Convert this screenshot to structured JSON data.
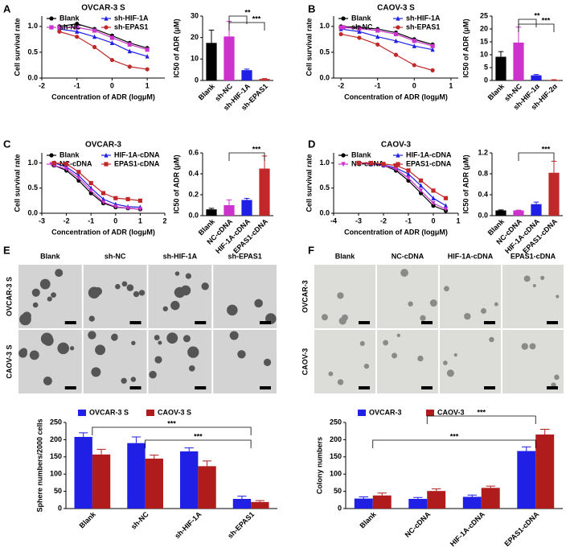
{
  "panel_labels": [
    "A",
    "B",
    "C",
    "D",
    "E",
    "F"
  ],
  "image_panels": [
    {
      "columns": [
        "Blank",
        "sh-NC",
        "sh-HIF-1A",
        "sh-EPAS1"
      ],
      "rows": [
        "OVCAR-3 S",
        "CAOV-3 S"
      ]
    },
    {
      "columns": [
        "Blank",
        "NC-cDNA",
        "HIF-1A-cDNA",
        "EPAS1-cDNA"
      ],
      "rows": [
        "OVCAR-3",
        "CAOV-3"
      ]
    }
  ],
  "chart_data": [
    {
      "type": "line",
      "title": "OVCAR-3 S",
      "x_label": "Concentration of ADR (logμM)",
      "y_label": "Cell survival rate",
      "x": [
        -1.5,
        -1,
        -0.5,
        0,
        0.5,
        1
      ],
      "xlim": [
        -2,
        1.5
      ],
      "xticks": [
        -2,
        -1,
        0,
        1
      ],
      "ylim": [
        0,
        1.2
      ],
      "yticks": [
        {
          "value": 0,
          "label": "0.0"
        },
        0.5,
        {
          "value": 1,
          "label": "1.0"
        }
      ],
      "series": [
        {
          "name": "Blank",
          "color": "#000000",
          "marker": "circle",
          "values": [
            1.0,
            1.05,
            0.95,
            0.82,
            0.68,
            0.58
          ]
        },
        {
          "name": "sh-HIF-1A",
          "color": "#1f1fe6",
          "marker": "triangle",
          "values": [
            0.95,
            0.9,
            0.8,
            0.68,
            0.52,
            0.42
          ]
        },
        {
          "name": "sh-NC",
          "color": "#cc33cc",
          "marker": "square",
          "values": [
            0.98,
            0.98,
            0.92,
            0.78,
            0.65,
            0.55
          ]
        },
        {
          "name": "sh-EPAS1",
          "color": "#c0282a",
          "marker": "circle",
          "values": [
            0.9,
            0.8,
            0.6,
            0.35,
            0.22,
            0.17
          ]
        }
      ]
    },
    {
      "type": "bar",
      "y_label": "IC50 of ADR (μM)",
      "categories": [
        "Blank",
        "sh-NC",
        "sh-HIF-1A",
        "sh-EPAS1"
      ],
      "values": [
        17.5,
        20.5,
        4.8,
        0.7
      ],
      "errors": [
        6,
        7,
        0.5,
        0.2
      ],
      "colors": [
        "#000000",
        "#cc33cc",
        "#1f1fe6",
        "#c0282a"
      ],
      "ylim": [
        0,
        30
      ],
      "yticks": [
        0,
        10,
        20,
        30
      ],
      "annotations": [
        "**",
        "***"
      ]
    },
    {
      "type": "line",
      "title": "CAOV-3 S",
      "x_label": "Concentration of ADR (logμM)",
      "y_label": "Cell survival rate",
      "x": [
        -2,
        -1.5,
        -1,
        -0.5,
        0,
        0.5
      ],
      "xlim": [
        -2.2,
        1.2
      ],
      "xticks": [
        -2,
        -1,
        0,
        1
      ],
      "ylim": [
        0,
        1.2
      ],
      "yticks": [
        {
          "value": 0,
          "label": "0.0"
        },
        0.5,
        {
          "value": 1,
          "label": "1.0"
        }
      ],
      "series": [
        {
          "name": "Blank",
          "color": "#000000",
          "marker": "circle",
          "values": [
            1.0,
            0.98,
            0.95,
            0.88,
            0.75,
            0.65
          ]
        },
        {
          "name": "sh-HIF-1A",
          "color": "#1f1fe6",
          "marker": "triangle",
          "values": [
            0.95,
            0.9,
            0.8,
            0.72,
            0.62,
            0.55
          ]
        },
        {
          "name": "sh-NC",
          "color": "#cc33cc",
          "marker": "square",
          "values": [
            0.98,
            0.96,
            0.92,
            0.85,
            0.72,
            0.62
          ]
        },
        {
          "name": "sh-EPAS1",
          "color": "#c0282a",
          "marker": "circle",
          "values": [
            0.85,
            0.78,
            0.65,
            0.45,
            0.25,
            0.15
          ]
        }
      ]
    },
    {
      "type": "bar",
      "y_label": "IC50 of ADR (μM)",
      "categories": [
        "Blank",
        "sh-NC",
        "sh-HIF-1α",
        "sh-HIF-2α"
      ],
      "values": [
        9.2,
        14.7,
        2.0,
        0.2
      ],
      "errors": [
        2,
        6,
        0.3,
        0.1
      ],
      "colors": [
        "#000000",
        "#cc33cc",
        "#1f1fe6",
        "#c0282a"
      ],
      "ylim": [
        0,
        25
      ],
      "yticks": [
        0,
        5,
        10,
        15,
        20,
        25
      ],
      "annotations": [
        "**",
        "***"
      ]
    },
    {
      "type": "line",
      "title": "OVCAR-3",
      "x_label": "Concentration of ADR (logμM)",
      "y_label": "Cell survival rate",
      "x": [
        -2.5,
        -2,
        -1.5,
        -1,
        -0.5,
        0,
        0.5,
        1
      ],
      "xlim": [
        -3,
        2
      ],
      "xticks": [
        -3,
        -2,
        -1,
        0,
        1,
        2
      ],
      "ylim": [
        0,
        1.2
      ],
      "yticks": [
        {
          "value": 0,
          "label": "0.0"
        },
        0.5,
        {
          "value": 1,
          "label": "1.0"
        }
      ],
      "series": [
        {
          "name": "Blank",
          "color": "#000000",
          "marker": "circle",
          "values": [
            0.95,
            0.85,
            0.65,
            0.4,
            0.2,
            0.12,
            0.1,
            0.08
          ]
        },
        {
          "name": "HIF-1A-cDNA",
          "color": "#1f1fe6",
          "marker": "triangle",
          "values": [
            1.0,
            0.92,
            0.75,
            0.5,
            0.28,
            0.18,
            0.13,
            0.12
          ]
        },
        {
          "name": "NC-cDNA",
          "color": "#cc33cc",
          "marker": "triangle-down",
          "values": [
            0.95,
            0.88,
            0.7,
            0.45,
            0.22,
            0.13,
            0.1,
            0.08
          ]
        },
        {
          "name": "EPAS1-cDNA",
          "color": "#c0282a",
          "marker": "square",
          "values": [
            1.0,
            0.98,
            0.82,
            0.6,
            0.4,
            0.3,
            0.28,
            0.25
          ]
        }
      ]
    },
    {
      "type": "bar",
      "y_label": "IC50 of ADR (μM)",
      "categories": [
        "Blank",
        "NC-cDNA",
        "HIF-1A-cDNA",
        "EPAS1-cDNA"
      ],
      "values": [
        0.06,
        0.1,
        0.15,
        0.45
      ],
      "errors": [
        0.01,
        0.05,
        0.015,
        0.12
      ],
      "colors": [
        "#000000",
        "#cc33cc",
        "#1f1fe6",
        "#c0282a"
      ],
      "ylim": [
        0,
        0.6
      ],
      "yticks": [
        {
          "value": 0,
          "label": "0.0"
        },
        0.2,
        0.4,
        0.6
      ],
      "annotations": [
        "***"
      ]
    },
    {
      "type": "line",
      "title": "CAOV-3",
      "x_label": "Concentration of ADR (logμM)",
      "y_label": "Cell survival rate",
      "x": [
        -3,
        -2.5,
        -2,
        -1.5,
        -1,
        -0.5,
        0,
        0.5
      ],
      "xlim": [
        -4,
        1
      ],
      "xticks": [
        -4,
        -3,
        -2,
        -1,
        0,
        1
      ],
      "ylim": [
        0,
        1.2
      ],
      "yticks": [
        {
          "value": 0,
          "label": "0.0"
        },
        0.5,
        {
          "value": 1,
          "label": "1.0"
        }
      ],
      "series": [
        {
          "name": "Blank",
          "color": "#000000",
          "marker": "circle",
          "values": [
            1.0,
            0.98,
            0.95,
            0.85,
            0.65,
            0.4,
            0.15,
            0.05
          ]
        },
        {
          "name": "HIF-1A-cDNA",
          "color": "#1f1fe6",
          "marker": "triangle",
          "values": [
            1.0,
            0.98,
            0.96,
            0.9,
            0.78,
            0.55,
            0.3,
            0.15
          ]
        },
        {
          "name": "NC-cDNA",
          "color": "#cc33cc",
          "marker": "triangle-down",
          "values": [
            1.0,
            0.97,
            0.95,
            0.88,
            0.7,
            0.45,
            0.2,
            0.08
          ]
        },
        {
          "name": "EPAS1-cDNA",
          "color": "#c0282a",
          "marker": "square",
          "values": [
            1.0,
            1.0,
            0.98,
            0.95,
            0.85,
            0.65,
            0.45,
            0.3
          ]
        }
      ]
    },
    {
      "type": "bar",
      "y_label": "IC50 of ADR (μM)",
      "categories": [
        "Blank",
        "NC-cDNA",
        "HIF-1A-cDNA",
        "EPAS1-cDNA"
      ],
      "values": [
        0.1,
        0.1,
        0.22,
        0.82
      ],
      "errors": [
        0.01,
        0.005,
        0.04,
        0.22
      ],
      "colors": [
        "#000000",
        "#cc33cc",
        "#1f1fe6",
        "#c0282a"
      ],
      "ylim": [
        0,
        1.2
      ],
      "yticks": [
        {
          "value": 0,
          "label": "0.0"
        },
        0.4,
        0.8,
        1.2
      ],
      "annotations": [
        "***"
      ]
    },
    {
      "type": "bar",
      "y_label": "Sphere numbers/2000 cells",
      "categories": [
        "Blank",
        "sh-NC",
        "sh-HIF-1A",
        "sh-EPAS1"
      ],
      "series": [
        {
          "name": "OVCAR-3 S",
          "color": "#1f1fe6",
          "values": [
            208,
            190,
            166,
            28
          ],
          "errors": [
            12,
            18,
            10,
            8
          ]
        },
        {
          "name": "CAOV-3 S",
          "color": "#b01c1c",
          "values": [
            157,
            145,
            123,
            19
          ],
          "errors": [
            15,
            10,
            15,
            4
          ]
        }
      ],
      "ylim": [
        0,
        250
      ],
      "yticks": [
        0,
        50,
        100,
        150,
        200,
        250
      ],
      "annotations": [
        "***",
        "***"
      ]
    },
    {
      "type": "bar",
      "y_label": "Colony numbers",
      "categories": [
        "Blank",
        "NC-cDNA",
        "HIF-1A-cDNA",
        "EPAS1-cDNA"
      ],
      "series": [
        {
          "name": "OVCAR-3",
          "color": "#1f1fe6",
          "values": [
            29,
            28,
            34,
            167
          ],
          "errors": [
            5,
            4,
            5,
            12
          ]
        },
        {
          "name": "CAOV-3",
          "color": "#b01c1c",
          "values": [
            38,
            51,
            60,
            215
          ],
          "errors": [
            7,
            6,
            5,
            15
          ]
        }
      ],
      "ylim": [
        0,
        250
      ],
      "yticks": [
        0,
        50,
        100,
        150,
        200,
        250
      ],
      "annotations": [
        "***",
        "***"
      ]
    }
  ]
}
